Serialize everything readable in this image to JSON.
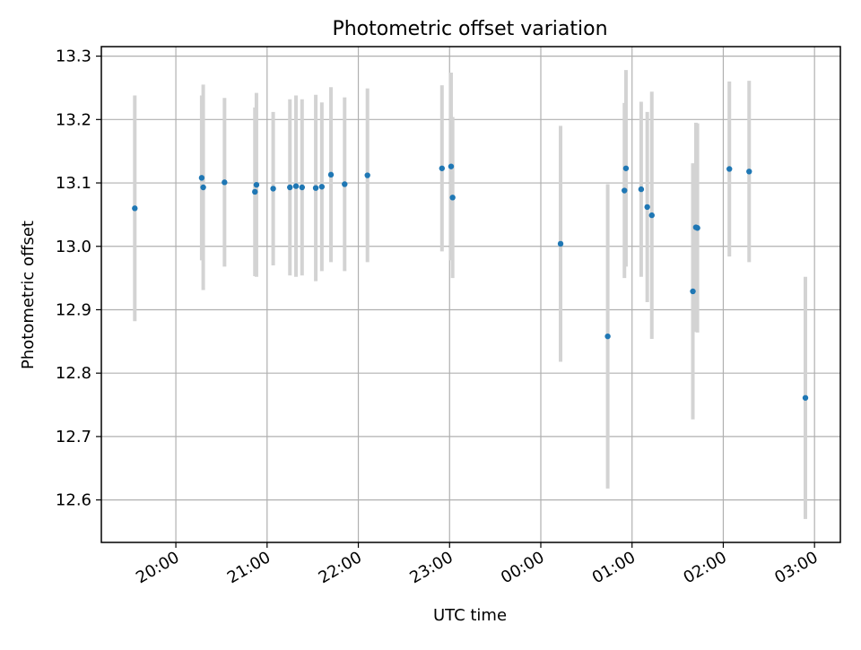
{
  "chart_data": {
    "type": "scatter",
    "title": "Photometric offset variation",
    "xlabel": "UTC time",
    "ylabel": "Photometric offset",
    "x_axis": {
      "type": "time",
      "range": [
        "2000-01-01T19:11",
        "2000-01-02T03:17"
      ],
      "ticks": [
        {
          "t": "2000-01-01T20:00",
          "label": "20:00"
        },
        {
          "t": "2000-01-01T21:00",
          "label": "21:00"
        },
        {
          "t": "2000-01-01T22:00",
          "label": "22:00"
        },
        {
          "t": "2000-01-01T23:00",
          "label": "23:00"
        },
        {
          "t": "2000-01-02T00:00",
          "label": "00:00"
        },
        {
          "t": "2000-01-02T01:00",
          "label": "01:00"
        },
        {
          "t": "2000-01-02T02:00",
          "label": "02:00"
        },
        {
          "t": "2000-01-02T03:00",
          "label": "03:00"
        }
      ]
    },
    "y_axis": {
      "range": [
        12.533,
        13.315
      ],
      "ticks": [
        12.6,
        12.7,
        12.8,
        12.9,
        13.0,
        13.1,
        13.2,
        13.3
      ],
      "tick_labels": [
        "12.6",
        "12.7",
        "12.8",
        "12.9",
        "13.0",
        "13.1",
        "13.2",
        "13.3"
      ]
    },
    "grid": true,
    "legend": "none",
    "colors": {
      "point": "#1f77b4",
      "errorbar": "#d3d3d3",
      "grid": "#b0b0b0"
    },
    "points": [
      {
        "t": "2000-01-01T19:33",
        "y": 13.06,
        "err": 0.178
      },
      {
        "t": "2000-01-01T20:17",
        "y": 13.108,
        "err": 0.13
      },
      {
        "t": "2000-01-01T20:18",
        "y": 13.093,
        "err": 0.162
      },
      {
        "t": "2000-01-01T20:32",
        "y": 13.101,
        "err": 0.133
      },
      {
        "t": "2000-01-01T20:52",
        "y": 13.086,
        "err": 0.133
      },
      {
        "t": "2000-01-01T20:53",
        "y": 13.097,
        "err": 0.145
      },
      {
        "t": "2000-01-01T21:04",
        "y": 13.091,
        "err": 0.121
      },
      {
        "t": "2000-01-01T21:15",
        "y": 13.093,
        "err": 0.139
      },
      {
        "t": "2000-01-01T21:19",
        "y": 13.095,
        "err": 0.143
      },
      {
        "t": "2000-01-01T21:23",
        "y": 13.093,
        "err": 0.139
      },
      {
        "t": "2000-01-01T21:32",
        "y": 13.092,
        "err": 0.147
      },
      {
        "t": "2000-01-01T21:36",
        "y": 13.094,
        "err": 0.133
      },
      {
        "t": "2000-01-01T21:42",
        "y": 13.113,
        "err": 0.138
      },
      {
        "t": "2000-01-01T21:51",
        "y": 13.098,
        "err": 0.137
      },
      {
        "t": "2000-01-01T22:06",
        "y": 13.112,
        "err": 0.137
      },
      {
        "t": "2000-01-01T22:55",
        "y": 13.123,
        "err": 0.131
      },
      {
        "t": "2000-01-01T23:01",
        "y": 13.126,
        "err": 0.148
      },
      {
        "t": "2000-01-01T23:02",
        "y": 13.077,
        "err": 0.127
      },
      {
        "t": "2000-01-02T00:13",
        "y": 13.004,
        "err": 0.186
      },
      {
        "t": "2000-01-02T00:44",
        "y": 12.858,
        "err": 0.24
      },
      {
        "t": "2000-01-02T00:55",
        "y": 13.088,
        "err": 0.138
      },
      {
        "t": "2000-01-02T00:56",
        "y": 13.123,
        "err": 0.155
      },
      {
        "t": "2000-01-02T01:06",
        "y": 13.09,
        "err": 0.138
      },
      {
        "t": "2000-01-02T01:10",
        "y": 13.062,
        "err": 0.15
      },
      {
        "t": "2000-01-02T01:13",
        "y": 13.049,
        "err": 0.195
      },
      {
        "t": "2000-01-02T01:40",
        "y": 12.929,
        "err": 0.202
      },
      {
        "t": "2000-01-02T01:42",
        "y": 13.03,
        "err": 0.165
      },
      {
        "t": "2000-01-02T01:43",
        "y": 13.029,
        "err": 0.165
      },
      {
        "t": "2000-01-02T02:04",
        "y": 13.122,
        "err": 0.138
      },
      {
        "t": "2000-01-02T02:17",
        "y": 13.118,
        "err": 0.143
      },
      {
        "t": "2000-01-02T02:54",
        "y": 12.761,
        "err": 0.191
      }
    ]
  }
}
